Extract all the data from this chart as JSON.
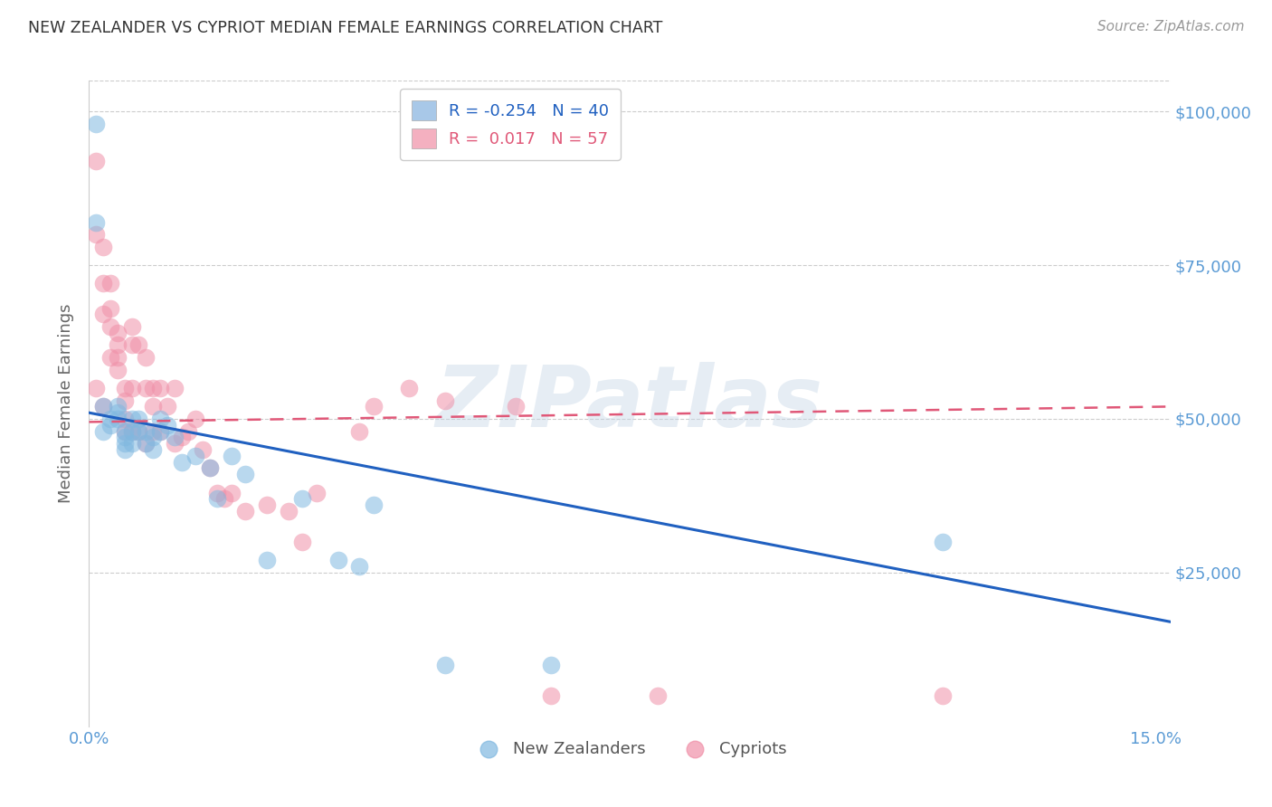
{
  "title": "NEW ZEALANDER VS CYPRIOT MEDIAN FEMALE EARNINGS CORRELATION CHART",
  "source": "Source: ZipAtlas.com",
  "ylabel": "Median Female Earnings",
  "ytick_labels": [
    "$25,000",
    "$50,000",
    "$75,000",
    "$100,000"
  ],
  "ytick_values": [
    25000,
    50000,
    75000,
    100000
  ],
  "background_color": "#ffffff",
  "watermark": "ZIPatlas",
  "legend_nz_label": "R = -0.254   N = 40",
  "legend_cy_label": "R =  0.017   N = 57",
  "legend_nz_color": "#a8c8e8",
  "legend_cy_color": "#f4b0c0",
  "nz_color": "#80b8e0",
  "cy_color": "#f090a8",
  "nz_line_color": "#2060c0",
  "cy_line_color": "#e05878",
  "nz_scatter_x": [
    0.001,
    0.001,
    0.002,
    0.002,
    0.003,
    0.003,
    0.004,
    0.004,
    0.004,
    0.005,
    0.005,
    0.005,
    0.005,
    0.006,
    0.006,
    0.006,
    0.007,
    0.007,
    0.008,
    0.008,
    0.009,
    0.009,
    0.01,
    0.01,
    0.011,
    0.012,
    0.013,
    0.015,
    0.017,
    0.018,
    0.02,
    0.022,
    0.025,
    0.03,
    0.035,
    0.038,
    0.04,
    0.05,
    0.065,
    0.12
  ],
  "nz_scatter_y": [
    98000,
    82000,
    52000,
    48000,
    50000,
    49000,
    52000,
    51000,
    50000,
    48000,
    47000,
    46000,
    45000,
    50000,
    48000,
    46000,
    50000,
    48000,
    48000,
    46000,
    47000,
    45000,
    50000,
    48000,
    49000,
    47000,
    43000,
    44000,
    42000,
    37000,
    44000,
    41000,
    27000,
    37000,
    27000,
    26000,
    36000,
    10000,
    10000,
    30000
  ],
  "cy_scatter_x": [
    0.001,
    0.001,
    0.001,
    0.002,
    0.002,
    0.002,
    0.002,
    0.003,
    0.003,
    0.003,
    0.003,
    0.004,
    0.004,
    0.004,
    0.004,
    0.005,
    0.005,
    0.005,
    0.005,
    0.006,
    0.006,
    0.006,
    0.006,
    0.007,
    0.007,
    0.008,
    0.008,
    0.008,
    0.009,
    0.009,
    0.009,
    0.01,
    0.01,
    0.011,
    0.012,
    0.012,
    0.013,
    0.014,
    0.015,
    0.016,
    0.017,
    0.018,
    0.019,
    0.02,
    0.022,
    0.025,
    0.028,
    0.03,
    0.032,
    0.038,
    0.04,
    0.045,
    0.05,
    0.06,
    0.065,
    0.08,
    0.12
  ],
  "cy_scatter_y": [
    92000,
    80000,
    55000,
    78000,
    72000,
    67000,
    52000,
    72000,
    68000,
    65000,
    60000,
    64000,
    62000,
    60000,
    58000,
    55000,
    53000,
    50000,
    48000,
    65000,
    62000,
    55000,
    48000,
    62000,
    48000,
    60000,
    55000,
    46000,
    55000,
    52000,
    48000,
    55000,
    48000,
    52000,
    55000,
    46000,
    47000,
    48000,
    50000,
    45000,
    42000,
    38000,
    37000,
    38000,
    35000,
    36000,
    35000,
    30000,
    38000,
    48000,
    52000,
    55000,
    53000,
    52000,
    5000,
    5000,
    5000
  ],
  "xlim": [
    0.0,
    0.152
  ],
  "ylim": [
    0,
    105000
  ],
  "nz_line_x": [
    0.0,
    0.152
  ],
  "nz_line_y": [
    51000,
    17000
  ],
  "cy_line_x": [
    0.0,
    0.152
  ],
  "cy_line_y": [
    49500,
    52000
  ],
  "figsize": [
    14.06,
    8.92
  ],
  "dpi": 100
}
